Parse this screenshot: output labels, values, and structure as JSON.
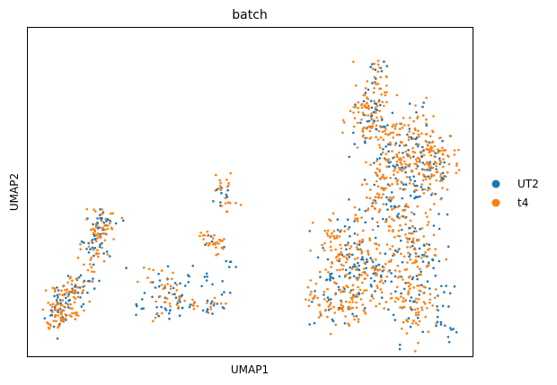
{
  "chart_data": {
    "type": "scatter",
    "title": "batch",
    "xlabel": "UMAP1",
    "ylabel": "UMAP2",
    "xticks": [],
    "yticks": [],
    "grid": false,
    "legend_position": "right",
    "series": [
      {
        "name": "UT2",
        "color": "#1f77b4",
        "cluster_points": [
          [
            1.8,
            2.9
          ],
          [
            2.4,
            3.4
          ],
          [
            3.1,
            3.6
          ],
          [
            3.6,
            4.1
          ],
          [
            4.3,
            4.6
          ],
          [
            3.9,
            6.6
          ],
          [
            4.5,
            6.9
          ],
          [
            5.1,
            6.4
          ],
          [
            4.9,
            8.3
          ],
          [
            5.5,
            8.0
          ],
          [
            7.6,
            3.0
          ],
          [
            8.8,
            3.4
          ],
          [
            10.4,
            3.3
          ],
          [
            12.1,
            3.1
          ],
          [
            13.2,
            3.3
          ],
          [
            10.9,
            4.6
          ],
          [
            12.3,
            4.9
          ],
          [
            13.6,
            5.2
          ],
          [
            13.0,
            9.9
          ],
          [
            23.4,
            15.1
          ],
          [
            24.1,
            13.5
          ],
          [
            24.8,
            12.3
          ],
          [
            25.9,
            10.9
          ],
          [
            26.6,
            9.6
          ],
          [
            24.2,
            9.3
          ],
          [
            25.4,
            8.6
          ],
          [
            26.7,
            7.1
          ],
          [
            27.5,
            5.6
          ],
          [
            28.2,
            4.0
          ],
          [
            27.9,
            2.2
          ],
          [
            28.7,
            1.4
          ],
          [
            22.0,
            4.8
          ],
          [
            22.9,
            5.5
          ],
          [
            24.3,
            5.1
          ],
          [
            21.6,
            7.9
          ],
          [
            20.6,
            4.6
          ],
          [
            9.6,
            2.5
          ]
        ]
      },
      {
        "name": "t4",
        "color": "#ff7f0e",
        "cluster_points": [
          [
            1.4,
            2.1
          ],
          [
            2.0,
            2.6
          ],
          [
            2.6,
            3.0
          ],
          [
            3.3,
            2.8
          ],
          [
            2.1,
            4.0
          ],
          [
            3.1,
            4.6
          ],
          [
            4.2,
            5.0
          ],
          [
            4.7,
            7.5
          ],
          [
            5.5,
            8.6
          ],
          [
            4.3,
            7.3
          ],
          [
            11.8,
            7.1
          ],
          [
            12.3,
            6.6
          ],
          [
            13.0,
            6.7
          ],
          [
            13.4,
            9.3
          ],
          [
            13.3,
            10.7
          ],
          [
            19.3,
            3.6
          ],
          [
            20.4,
            3.0
          ],
          [
            21.6,
            3.5
          ],
          [
            22.8,
            3.3
          ],
          [
            20.6,
            7.0
          ],
          [
            21.3,
            6.0
          ],
          [
            22.9,
            6.6
          ],
          [
            24.5,
            6.9
          ],
          [
            25.9,
            7.1
          ],
          [
            27.1,
            5.9
          ],
          [
            26.2,
            2.3
          ],
          [
            27.3,
            3.2
          ],
          [
            23.9,
            10.9
          ],
          [
            25.1,
            11.5
          ],
          [
            26.5,
            12.2
          ],
          [
            27.4,
            12.8
          ],
          [
            28.3,
            12.6
          ],
          [
            27.9,
            11.0
          ],
          [
            23.0,
            13.4
          ],
          [
            24.6,
            14.2
          ],
          [
            26.0,
            14.7
          ],
          [
            22.7,
            15.0
          ],
          [
            23.0,
            15.3
          ],
          [
            24.0,
            16.3
          ],
          [
            22.5,
            8.2
          ]
        ]
      }
    ]
  }
}
